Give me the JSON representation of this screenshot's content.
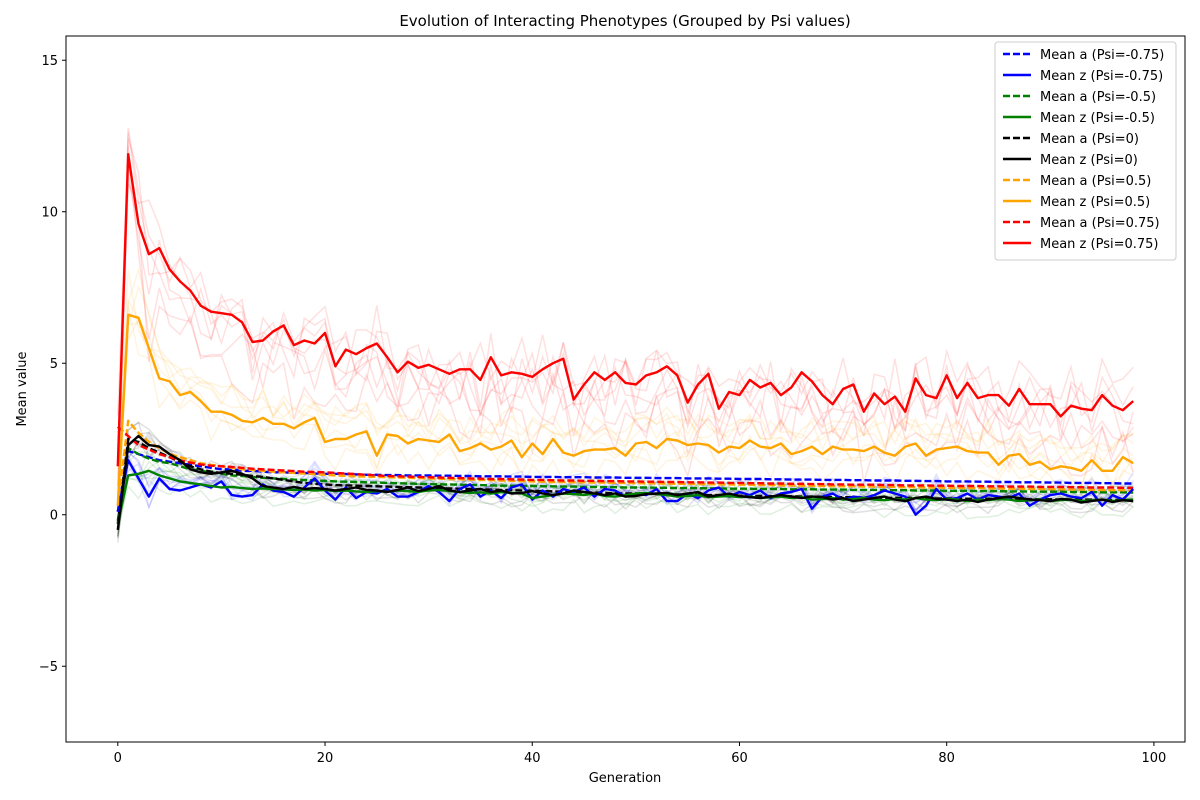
{
  "chart_data": {
    "type": "line",
    "title": "Evolution of Interacting Phenotypes (Grouped by Psi values)",
    "xlabel": "Generation",
    "ylabel": "Mean value",
    "xlim": [
      -5,
      103
    ],
    "ylim": [
      -7.5,
      15.8
    ],
    "x_ticks": [
      0,
      20,
      40,
      60,
      80,
      100
    ],
    "y_ticks": [
      -5,
      0,
      5,
      10,
      15
    ],
    "grid": false,
    "legend_position": "top-right",
    "x": [
      0,
      1,
      2,
      3,
      4,
      5,
      6,
      7,
      8,
      9,
      10,
      11,
      12,
      13,
      14,
      15,
      16,
      17,
      18,
      19,
      20,
      21,
      22,
      23,
      24,
      25,
      26,
      27,
      28,
      29,
      30,
      31,
      32,
      33,
      34,
      35,
      36,
      37,
      38,
      39,
      40,
      41,
      42,
      43,
      44,
      45,
      46,
      47,
      48,
      49,
      50,
      51,
      52,
      53,
      54,
      55,
      56,
      57,
      58,
      59,
      60,
      61,
      62,
      63,
      64,
      65,
      66,
      67,
      68,
      69,
      70,
      71,
      72,
      73,
      74,
      75,
      76,
      77,
      78,
      79,
      80,
      81,
      82,
      83,
      84,
      85,
      86,
      87,
      88,
      89,
      90,
      91,
      92,
      93,
      94,
      95,
      96,
      97,
      98
    ],
    "series": [
      {
        "name": "Mean a (Psi=-0.75)",
        "color": "#0000ff",
        "style": "dashed",
        "values": [
          0.1,
          2.1,
          2.0,
          1.9,
          1.8,
          1.75,
          1.7,
          1.65,
          1.6,
          1.55,
          1.5,
          1.5,
          1.45,
          1.45,
          1.42,
          1.4,
          1.4,
          1.38,
          1.38,
          1.36,
          1.35,
          1.35,
          1.34,
          1.33,
          1.32,
          1.32,
          1.31,
          1.31,
          1.3,
          1.3,
          1.3,
          1.29,
          1.29,
          1.28,
          1.28,
          1.27,
          1.27,
          1.27,
          1.26,
          1.26,
          1.25,
          1.25,
          1.25,
          1.24,
          1.24,
          1.24,
          1.23,
          1.23,
          1.23,
          1.22,
          1.22,
          1.22,
          1.21,
          1.21,
          1.21,
          1.2,
          1.2,
          1.2,
          1.19,
          1.19,
          1.18,
          1.18,
          1.18,
          1.17,
          1.17,
          1.16,
          1.16,
          1.16,
          1.15,
          1.15,
          1.15,
          1.14,
          1.14,
          1.13,
          1.13,
          1.13,
          1.12,
          1.12,
          1.11,
          1.11,
          1.1,
          1.1,
          1.1,
          1.09,
          1.09,
          1.08,
          1.08,
          1.07,
          1.07,
          1.07,
          1.06,
          1.06,
          1.05,
          1.05,
          1.05,
          1.04,
          1.04,
          1.03,
          1.03
        ]
      },
      {
        "name": "Mean z (Psi=-0.75)",
        "color": "#0000ff",
        "style": "solid",
        "values": [
          0.1,
          1.8,
          1.2,
          0.6,
          1.2,
          0.85,
          0.8,
          0.9,
          1.0,
          0.9,
          1.1,
          0.65,
          0.6,
          0.65,
          1.0,
          0.8,
          0.75,
          0.6,
          0.9,
          1.2,
          0.8,
          0.5,
          0.9,
          0.55,
          0.75,
          0.7,
          0.85,
          0.6,
          0.6,
          0.75,
          0.95,
          0.75,
          0.45,
          0.85,
          1.0,
          0.6,
          0.8,
          0.55,
          0.9,
          1.0,
          0.5,
          0.8,
          0.6,
          0.85,
          0.75,
          0.9,
          0.6,
          0.85,
          0.8,
          0.6,
          0.7,
          0.65,
          0.85,
          0.45,
          0.45,
          0.7,
          0.55,
          0.8,
          0.9,
          0.6,
          0.75,
          0.65,
          0.8,
          0.55,
          0.7,
          0.75,
          0.85,
          0.2,
          0.6,
          0.7,
          0.5,
          0.6,
          0.55,
          0.65,
          0.8,
          0.7,
          0.6,
          0.0,
          0.3,
          0.85,
          0.5,
          0.55,
          0.7,
          0.5,
          0.65,
          0.6,
          0.55,
          0.7,
          0.3,
          0.5,
          0.65,
          0.7,
          0.6,
          0.55,
          0.75,
          0.3,
          0.65,
          0.5,
          0.85
        ]
      },
      {
        "name": "Mean a (Psi=-0.5)",
        "color": "#008000",
        "style": "dashed",
        "values": [
          -0.2,
          2.2,
          2.0,
          1.85,
          1.75,
          1.7,
          1.6,
          1.5,
          1.45,
          1.4,
          1.35,
          1.3,
          1.28,
          1.25,
          1.22,
          1.2,
          1.18,
          1.16,
          1.15,
          1.13,
          1.12,
          1.1,
          1.09,
          1.08,
          1.07,
          1.06,
          1.05,
          1.04,
          1.03,
          1.02,
          1.01,
          1.0,
          1.0,
          0.99,
          0.98,
          0.98,
          0.97,
          0.96,
          0.96,
          0.95,
          0.95,
          0.94,
          0.94,
          0.93,
          0.93,
          0.92,
          0.92,
          0.91,
          0.91,
          0.9,
          0.9,
          0.9,
          0.89,
          0.89,
          0.88,
          0.88,
          0.88,
          0.87,
          0.87,
          0.86,
          0.86,
          0.86,
          0.85,
          0.85,
          0.85,
          0.84,
          0.84,
          0.84,
          0.83,
          0.83,
          0.83,
          0.82,
          0.82,
          0.82,
          0.81,
          0.81,
          0.81,
          0.8,
          0.8,
          0.8,
          0.79,
          0.79,
          0.79,
          0.78,
          0.78,
          0.78,
          0.77,
          0.77,
          0.77,
          0.76,
          0.76,
          0.76,
          0.75,
          0.75,
          0.75,
          0.74,
          0.74,
          0.74,
          0.73
        ]
      },
      {
        "name": "Mean z (Psi=-0.5)",
        "color": "#008000",
        "style": "solid",
        "values": [
          -0.3,
          1.3,
          1.35,
          1.45,
          1.3,
          1.2,
          1.1,
          1.05,
          1.0,
          0.95,
          0.9,
          0.92,
          0.88,
          0.85,
          0.87,
          0.85,
          0.84,
          0.82,
          0.83,
          0.8,
          0.82,
          0.78,
          0.8,
          0.77,
          0.75,
          0.78,
          0.76,
          0.8,
          0.78,
          0.75,
          0.8,
          0.82,
          0.78,
          0.75,
          0.72,
          0.74,
          0.7,
          0.75,
          0.72,
          0.7,
          0.55,
          0.6,
          0.65,
          0.7,
          0.68,
          0.65,
          0.7,
          0.62,
          0.6,
          0.65,
          0.7,
          0.72,
          0.68,
          0.65,
          0.6,
          0.62,
          0.65,
          0.58,
          0.6,
          0.62,
          0.58,
          0.6,
          0.55,
          0.58,
          0.6,
          0.55,
          0.58,
          0.5,
          0.52,
          0.55,
          0.5,
          0.52,
          0.55,
          0.5,
          0.48,
          0.52,
          0.5,
          0.55,
          0.5,
          0.48,
          0.52,
          0.5,
          0.45,
          0.5,
          0.48,
          0.52,
          0.5,
          0.45,
          0.48,
          0.5,
          0.45,
          0.48,
          0.5,
          0.45,
          0.47,
          0.5,
          0.45,
          0.48,
          0.5
        ]
      },
      {
        "name": "Mean a (Psi=0)",
        "color": "#000000",
        "style": "dashed",
        "values": [
          -0.3,
          2.5,
          2.4,
          2.2,
          2.05,
          1.9,
          1.75,
          1.6,
          1.5,
          1.42,
          1.38,
          1.35,
          1.32,
          1.28,
          1.25,
          1.2,
          1.15,
          1.1,
          1.05,
          1.02,
          1.0,
          0.98,
          0.97,
          0.96,
          0.95,
          0.94,
          0.93,
          0.92,
          0.91,
          0.9,
          0.89,
          0.88,
          0.87,
          0.86,
          0.85,
          0.84,
          0.83,
          0.82,
          0.81,
          0.8,
          0.79,
          0.78,
          0.77,
          0.76,
          0.75,
          0.74,
          0.73,
          0.72,
          0.71,
          0.7,
          0.7,
          0.69,
          0.68,
          0.68,
          0.67,
          0.66,
          0.66,
          0.65,
          0.65,
          0.64,
          0.63,
          0.63,
          0.62,
          0.62,
          0.61,
          0.61,
          0.6,
          0.6,
          0.59,
          0.59,
          0.58,
          0.58,
          0.57,
          0.57,
          0.56,
          0.56,
          0.56,
          0.55,
          0.55,
          0.54,
          0.54,
          0.54,
          0.53,
          0.53,
          0.53,
          0.52,
          0.52,
          0.52,
          0.51,
          0.51,
          0.51,
          0.5,
          0.5,
          0.5,
          0.5,
          0.49,
          0.49,
          0.49,
          0.48
        ]
      },
      {
        "name": "Mean z (Psi=0)",
        "color": "#000000",
        "style": "solid",
        "values": [
          -0.5,
          2.3,
          2.6,
          2.3,
          2.25,
          2.0,
          1.8,
          1.5,
          1.4,
          1.35,
          1.4,
          1.45,
          1.35,
          1.2,
          0.95,
          0.9,
          0.85,
          0.92,
          0.85,
          0.88,
          0.85,
          0.8,
          0.85,
          0.9,
          0.82,
          0.8,
          0.75,
          0.82,
          0.9,
          0.78,
          0.85,
          0.95,
          0.8,
          0.75,
          0.8,
          0.85,
          0.75,
          0.8,
          0.7,
          0.72,
          0.78,
          0.7,
          0.65,
          0.7,
          0.8,
          0.75,
          0.7,
          0.65,
          0.7,
          0.6,
          0.62,
          0.68,
          0.7,
          0.72,
          0.65,
          0.7,
          0.75,
          0.6,
          0.65,
          0.7,
          0.62,
          0.58,
          0.55,
          0.6,
          0.65,
          0.6,
          0.55,
          0.6,
          0.58,
          0.5,
          0.55,
          0.45,
          0.5,
          0.55,
          0.6,
          0.5,
          0.45,
          0.55,
          0.6,
          0.52,
          0.5,
          0.45,
          0.5,
          0.42,
          0.5,
          0.55,
          0.6,
          0.55,
          0.5,
          0.48,
          0.45,
          0.52,
          0.5,
          0.4,
          0.45,
          0.5,
          0.42,
          0.48,
          0.45
        ]
      },
      {
        "name": "Mean a (Psi=0.5)",
        "color": "#ffa500",
        "style": "dashed",
        "values": [
          0.3,
          3.1,
          2.7,
          2.4,
          2.2,
          2.0,
          1.9,
          1.8,
          1.7,
          1.65,
          1.6,
          1.55,
          1.5,
          1.48,
          1.45,
          1.42,
          1.4,
          1.38,
          1.36,
          1.34,
          1.32,
          1.3,
          1.28,
          1.27,
          1.26,
          1.25,
          1.24,
          1.23,
          1.22,
          1.21,
          1.2,
          1.19,
          1.18,
          1.17,
          1.16,
          1.15,
          1.14,
          1.13,
          1.12,
          1.11,
          1.1,
          1.09,
          1.08,
          1.08,
          1.07,
          1.07,
          1.06,
          1.06,
          1.05,
          1.05,
          1.04,
          1.04,
          1.03,
          1.03,
          1.02,
          1.02,
          1.01,
          1.01,
          1.0,
          1.0,
          0.99,
          0.99,
          0.98,
          0.98,
          0.97,
          0.97,
          0.96,
          0.96,
          0.95,
          0.95,
          0.94,
          0.94,
          0.93,
          0.93,
          0.92,
          0.92,
          0.91,
          0.91,
          0.9,
          0.9,
          0.89,
          0.89,
          0.88,
          0.88,
          0.87,
          0.87,
          0.86,
          0.86,
          0.85,
          0.85,
          0.84,
          0.84,
          0.83,
          0.83,
          0.82,
          0.82,
          0.81,
          0.81,
          0.8
        ]
      },
      {
        "name": "Mean z (Psi=0.5)",
        "color": "#ffa500",
        "style": "solid",
        "values": [
          0.3,
          6.6,
          6.5,
          5.5,
          4.5,
          4.4,
          3.95,
          4.05,
          3.75,
          3.4,
          3.4,
          3.3,
          3.1,
          3.05,
          3.2,
          3.0,
          3.0,
          2.85,
          3.05,
          3.2,
          2.4,
          2.5,
          2.5,
          2.65,
          2.75,
          1.95,
          2.65,
          2.6,
          2.35,
          2.5,
          2.45,
          2.4,
          2.65,
          2.1,
          2.2,
          2.35,
          2.15,
          2.25,
          2.45,
          1.9,
          2.35,
          2.0,
          2.5,
          2.05,
          1.95,
          2.1,
          2.15,
          2.15,
          2.2,
          1.95,
          2.35,
          2.4,
          2.2,
          2.5,
          2.45,
          2.3,
          2.35,
          2.3,
          2.05,
          2.25,
          2.2,
          2.45,
          2.25,
          2.2,
          2.35,
          2.0,
          2.1,
          2.25,
          2.0,
          2.25,
          2.15,
          2.15,
          2.1,
          2.25,
          2.05,
          1.95,
          2.25,
          2.35,
          1.95,
          2.15,
          2.2,
          2.25,
          2.1,
          2.05,
          2.05,
          1.65,
          1.95,
          2.0,
          1.65,
          1.75,
          1.5,
          1.6,
          1.55,
          1.45,
          1.8,
          1.45,
          1.45,
          1.9,
          1.7
        ]
      },
      {
        "name": "Mean a (Psi=0.75)",
        "color": "#ff0000",
        "style": "dashed",
        "values": [
          2.9,
          2.6,
          2.3,
          2.15,
          2.0,
          1.9,
          1.8,
          1.72,
          1.66,
          1.62,
          1.6,
          1.58,
          1.55,
          1.52,
          1.5,
          1.48,
          1.46,
          1.44,
          1.42,
          1.41,
          1.4,
          1.38,
          1.36,
          1.34,
          1.32,
          1.3,
          1.28,
          1.27,
          1.26,
          1.25,
          1.24,
          1.23,
          1.22,
          1.21,
          1.2,
          1.19,
          1.18,
          1.18,
          1.17,
          1.16,
          1.15,
          1.15,
          1.14,
          1.13,
          1.13,
          1.12,
          1.12,
          1.11,
          1.11,
          1.1,
          1.1,
          1.09,
          1.09,
          1.08,
          1.08,
          1.07,
          1.07,
          1.06,
          1.06,
          1.05,
          1.05,
          1.04,
          1.04,
          1.03,
          1.03,
          1.02,
          1.02,
          1.01,
          1.01,
          1.0,
          1.0,
          0.99,
          0.99,
          0.99,
          0.98,
          0.98,
          0.97,
          0.97,
          0.97,
          0.96,
          0.96,
          0.95,
          0.95,
          0.95,
          0.94,
          0.94,
          0.93,
          0.93,
          0.93,
          0.92,
          0.92,
          0.92,
          0.91,
          0.91,
          0.9,
          0.9,
          0.9,
          0.89,
          0.89
        ]
      },
      {
        "name": "Mean z (Psi=0.75)",
        "color": "#ff0000",
        "style": "solid",
        "values": [
          1.6,
          11.9,
          9.6,
          8.6,
          8.8,
          8.1,
          7.7,
          7.4,
          6.9,
          6.7,
          6.65,
          6.6,
          6.35,
          5.7,
          5.75,
          6.05,
          6.25,
          5.6,
          5.75,
          5.65,
          6.0,
          4.9,
          5.45,
          5.3,
          5.5,
          5.65,
          5.2,
          4.7,
          5.05,
          4.85,
          4.95,
          4.8,
          4.65,
          4.8,
          4.8,
          4.45,
          5.2,
          4.6,
          4.7,
          4.65,
          4.55,
          4.8,
          5.0,
          5.15,
          3.8,
          4.3,
          4.7,
          4.45,
          4.7,
          4.35,
          4.3,
          4.6,
          4.7,
          4.9,
          4.6,
          3.7,
          4.3,
          4.65,
          3.5,
          4.05,
          3.95,
          4.45,
          4.2,
          4.35,
          3.95,
          4.2,
          4.7,
          4.4,
          3.95,
          3.65,
          4.15,
          4.3,
          3.4,
          4.0,
          3.65,
          3.9,
          3.4,
          4.5,
          3.95,
          3.85,
          4.6,
          3.85,
          4.35,
          3.85,
          3.95,
          3.95,
          3.6,
          4.15,
          3.65,
          3.65,
          3.65,
          3.25,
          3.6,
          3.5,
          3.45,
          3.95,
          3.6,
          3.45,
          3.75
        ]
      }
    ]
  }
}
